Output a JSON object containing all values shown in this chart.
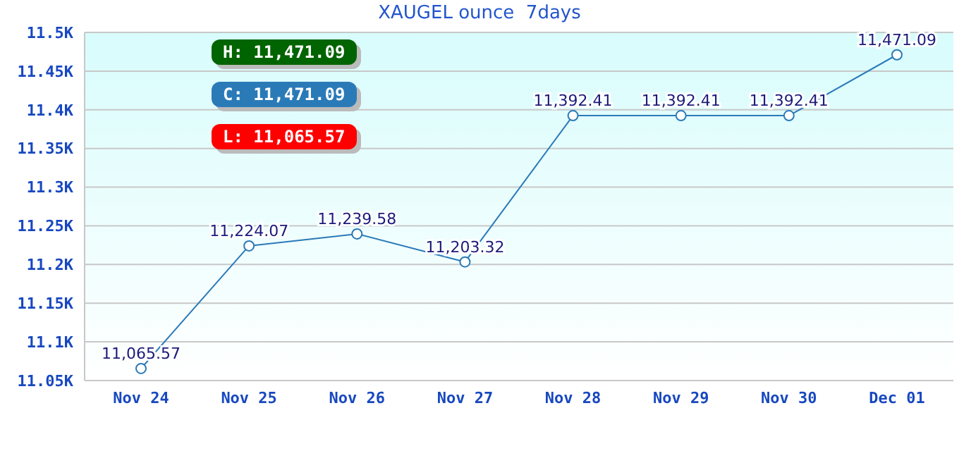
{
  "chart_data": {
    "type": "line",
    "title": "XAUGEL ounce  7days",
    "categories": [
      "Nov 24",
      "Nov 25",
      "Nov 26",
      "Nov 27",
      "Nov 28",
      "Nov 29",
      "Nov 30",
      "Dec 01"
    ],
    "series": [
      {
        "color": "#2a7ab8",
        "values": [
          11065.57,
          11224.07,
          11239.58,
          11203.32,
          11392.41,
          11392.41,
          11392.41,
          11471.09
        ],
        "value_labels": [
          "11,065.57",
          "11,224.07",
          "11,239.58",
          "11,203.32",
          "11,392.41",
          "11,392.41",
          "11,392.41",
          "11,471.09"
        ]
      }
    ],
    "ylim": [
      11050,
      11500
    ],
    "yticks": [
      {
        "value": 11050,
        "label": "11.05K"
      },
      {
        "value": 11100,
        "label": "11.1K"
      },
      {
        "value": 11150,
        "label": "11.15K"
      },
      {
        "value": 11200,
        "label": "11.2K"
      },
      {
        "value": 11250,
        "label": "11.25K"
      },
      {
        "value": 11300,
        "label": "11.3K"
      },
      {
        "value": 11350,
        "label": "11.35K"
      },
      {
        "value": 11400,
        "label": "11.4K"
      },
      {
        "value": 11450,
        "label": "11.45K"
      },
      {
        "value": 11500,
        "label": "11.5K"
      }
    ],
    "grid": "y",
    "marker": "circle",
    "legend": false,
    "annotations": [
      "H: 11,471.09",
      "C: 11,471.09",
      "L: 11,065.57"
    ]
  }
}
